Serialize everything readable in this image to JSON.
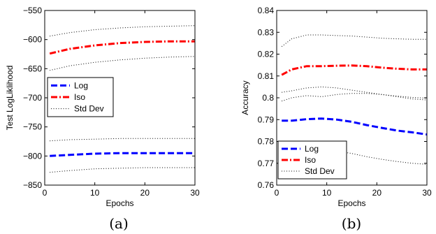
{
  "chart_data": [
    {
      "type": "line",
      "xlabel": "Epochs",
      "ylabel": "Test LogLiklihood",
      "xlim": [
        0,
        30
      ],
      "ylim": [
        -850,
        -550
      ],
      "xticks": [
        0,
        10,
        20,
        30
      ],
      "yticks": [
        -850,
        -800,
        -750,
        -700,
        -650,
        -600,
        -550
      ],
      "xtick_labels": [
        "0",
        "10",
        "20",
        "30"
      ],
      "ytick_labels": [
        "−850",
        "−800",
        "−750",
        "−700",
        "−650",
        "−600",
        "−550"
      ],
      "caption": "(a)",
      "legend_position": "middle-left",
      "legend": [
        "Log",
        "Iso",
        "Std Dev"
      ],
      "grid": false,
      "series": [
        {
          "name": "Log",
          "style": "dashed",
          "color": "#0000ff",
          "x": [
            1,
            5,
            10,
            15,
            20,
            25,
            30
          ],
          "y": [
            -800,
            -798,
            -796,
            -795,
            -795,
            -795,
            -795
          ]
        },
        {
          "name": "Iso",
          "style": "dashdot",
          "color": "#ff0000",
          "x": [
            1,
            5,
            10,
            15,
            20,
            25,
            30
          ],
          "y": [
            -624,
            -616,
            -610,
            -606,
            -604,
            -603,
            -603
          ]
        },
        {
          "name": "Std Dev",
          "style": "dotted",
          "color": "#000000",
          "x": [
            1,
            5,
            10,
            15,
            20,
            25,
            30
          ],
          "y": [
            -594,
            -588,
            -583,
            -580,
            -578,
            -577,
            -576
          ]
        },
        {
          "style": "dotted",
          "color": "#000000",
          "x": [
            1,
            5,
            10,
            15,
            20,
            25,
            30
          ],
          "y": [
            -653,
            -645,
            -639,
            -635,
            -632,
            -630,
            -629
          ]
        },
        {
          "style": "dotted",
          "color": "#000000",
          "x": [
            1,
            5,
            10,
            15,
            20,
            25,
            30
          ],
          "y": [
            -774,
            -772,
            -771,
            -770,
            -770,
            -770,
            -770
          ]
        },
        {
          "style": "dotted",
          "color": "#000000",
          "x": [
            1,
            5,
            10,
            15,
            20,
            25,
            30
          ],
          "y": [
            -828,
            -825,
            -822,
            -821,
            -820,
            -820,
            -820
          ]
        }
      ]
    },
    {
      "type": "line",
      "xlabel": "Epochs",
      "ylabel": "Accuracy",
      "xlim": [
        0,
        30
      ],
      "ylim": [
        0.76,
        0.84
      ],
      "xticks": [
        0,
        10,
        20,
        30
      ],
      "yticks": [
        0.76,
        0.77,
        0.78,
        0.79,
        0.8,
        0.81,
        0.82,
        0.83,
        0.84
      ],
      "xtick_labels": [
        "0",
        "10",
        "20",
        "30"
      ],
      "ytick_labels": [
        "0.76",
        "0.77",
        "0.78",
        "0.79",
        "0.8",
        "0.81",
        "0.82",
        "0.83",
        "0.84"
      ],
      "caption": "(b)",
      "legend_position": "bottom-left",
      "legend": [
        "Log",
        "Iso",
        "Std Dev"
      ],
      "grid": false,
      "series": [
        {
          "name": "Log",
          "style": "dashed",
          "color": "#0000ff",
          "x": [
            1,
            3,
            6,
            9,
            12,
            15,
            18,
            21,
            24,
            27,
            30
          ],
          "y": [
            0.7895,
            0.7895,
            0.7902,
            0.7905,
            0.79,
            0.789,
            0.7875,
            0.7862,
            0.785,
            0.7842,
            0.7832
          ]
        },
        {
          "name": "Iso",
          "style": "dashdot",
          "color": "#ff0000",
          "x": [
            1,
            3,
            6,
            9,
            12,
            15,
            18,
            21,
            24,
            27,
            30
          ],
          "y": [
            0.8105,
            0.813,
            0.8145,
            0.8145,
            0.8147,
            0.8148,
            0.8145,
            0.8138,
            0.8133,
            0.813,
            0.813
          ]
        },
        {
          "name": "Std Dev",
          "style": "dotted",
          "color": "#000000",
          "x": [
            1,
            3,
            6,
            9,
            12,
            15,
            18,
            21,
            24,
            27,
            30
          ],
          "y": [
            0.8235,
            0.827,
            0.8288,
            0.8288,
            0.8285,
            0.8283,
            0.8278,
            0.8273,
            0.827,
            0.8268,
            0.8268
          ]
        },
        {
          "style": "dotted",
          "color": "#000000",
          "x": [
            1,
            3,
            6,
            9,
            12,
            15,
            18,
            21,
            24,
            27,
            30
          ],
          "y": [
            0.8025,
            0.8032,
            0.8045,
            0.805,
            0.8045,
            0.8035,
            0.8025,
            0.8015,
            0.8005,
            0.7995,
            0.799
          ]
        },
        {
          "style": "dotted",
          "color": "#000000",
          "x": [
            1,
            3,
            6,
            9,
            12,
            15,
            18,
            21,
            24,
            27,
            30
          ],
          "y": [
            0.7985,
            0.8,
            0.801,
            0.8005,
            0.8015,
            0.802,
            0.802,
            0.8015,
            0.8008,
            0.8002,
            0.7998
          ]
        },
        {
          "style": "dotted",
          "color": "#000000",
          "x": [
            1,
            3,
            6,
            9,
            12,
            15,
            18,
            21,
            24,
            27,
            30
          ],
          "y": [
            0.7765,
            0.776,
            0.7762,
            0.7765,
            0.7755,
            0.7745,
            0.773,
            0.7718,
            0.7708,
            0.77,
            0.7695
          ]
        }
      ]
    }
  ]
}
